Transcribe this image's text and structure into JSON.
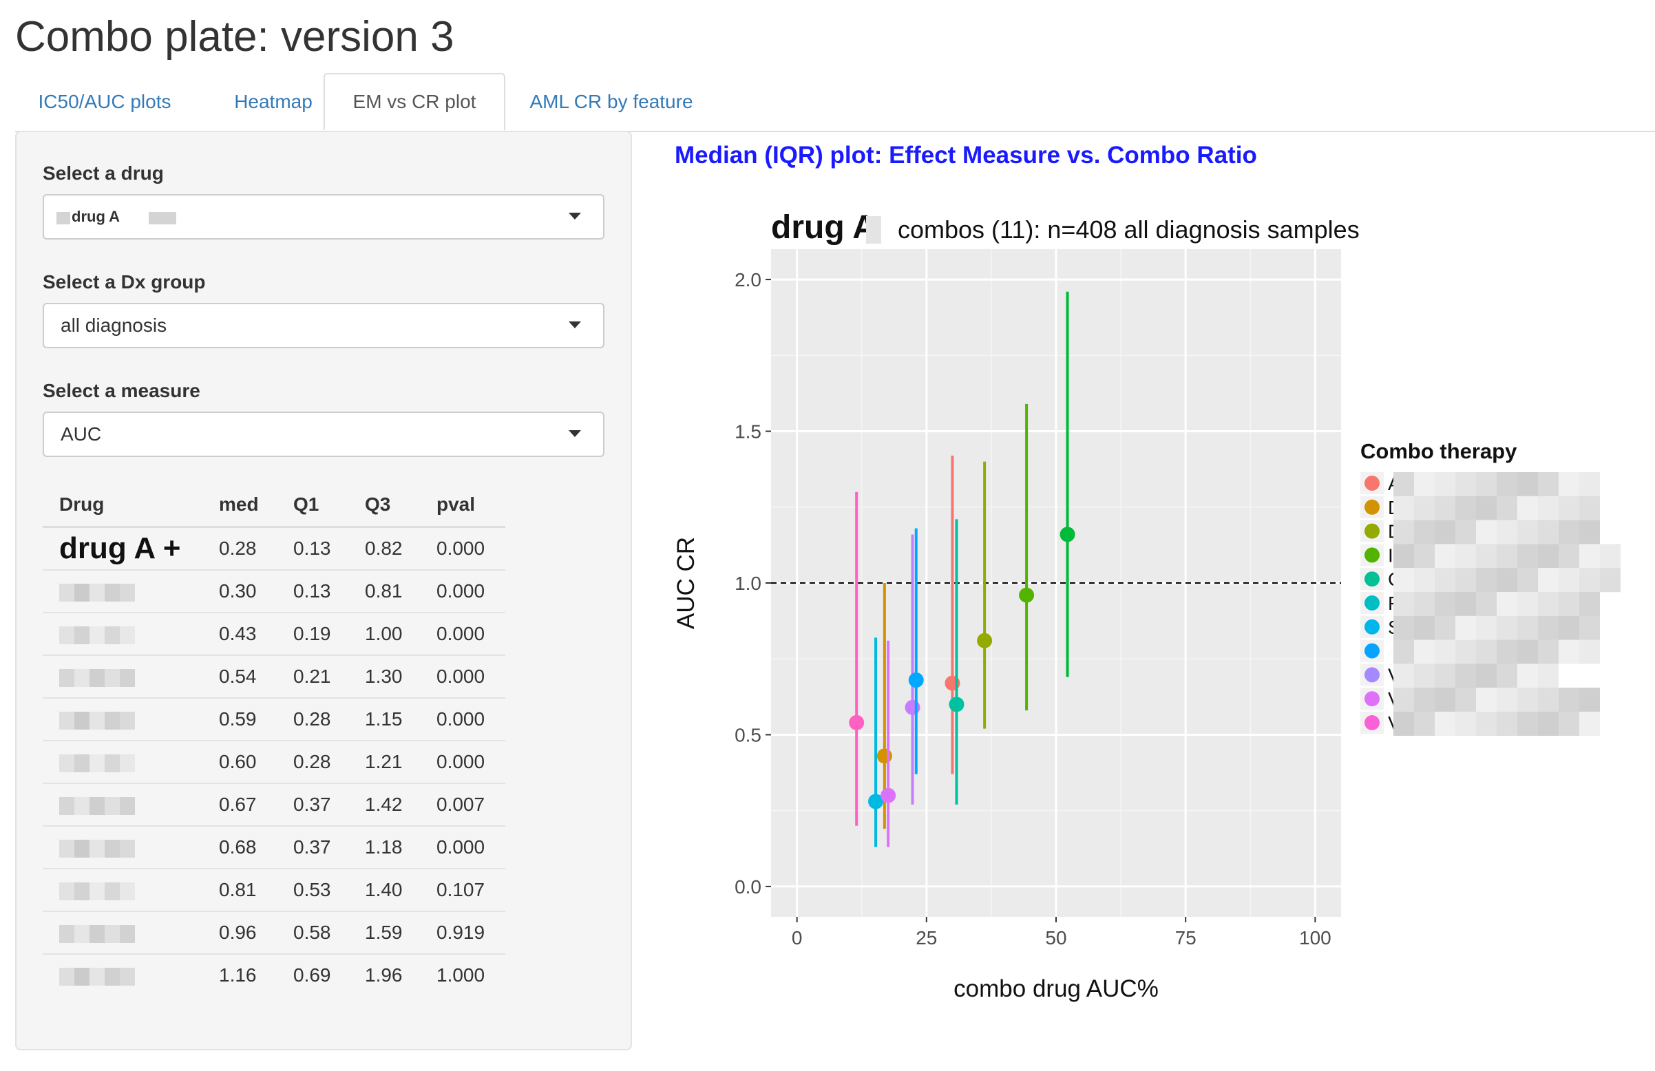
{
  "page": {
    "title": "Combo plate: version 3"
  },
  "tabs": [
    {
      "label": "IC50/AUC plots",
      "active": false
    },
    {
      "label": "Heatmap",
      "active": false
    },
    {
      "label": "EM vs CR plot",
      "active": true
    },
    {
      "label": "AML CR by feature",
      "active": false
    }
  ],
  "controls": {
    "drug": {
      "label": "Select a drug",
      "value": "drug A"
    },
    "dx": {
      "label": "Select a Dx group",
      "value": "all diagnosis"
    },
    "measure": {
      "label": "Select a measure",
      "value": "AUC"
    }
  },
  "table": {
    "headers": [
      "Drug",
      "med",
      "Q1",
      "Q3",
      "pval"
    ],
    "rows": [
      {
        "drug": "drug A +",
        "med": "0.28",
        "q1": "0.13",
        "q3": "0.82",
        "pval": "0.000"
      },
      {
        "drug": "",
        "med": "0.30",
        "q1": "0.13",
        "q3": "0.81",
        "pval": "0.000"
      },
      {
        "drug": "",
        "med": "0.43",
        "q1": "0.19",
        "q3": "1.00",
        "pval": "0.000"
      },
      {
        "drug": "",
        "med": "0.54",
        "q1": "0.21",
        "q3": "1.30",
        "pval": "0.000"
      },
      {
        "drug": "",
        "med": "0.59",
        "q1": "0.28",
        "q3": "1.15",
        "pval": "0.000"
      },
      {
        "drug": "",
        "med": "0.60",
        "q1": "0.28",
        "q3": "1.21",
        "pval": "0.000"
      },
      {
        "drug": "",
        "med": "0.67",
        "q1": "0.37",
        "q3": "1.42",
        "pval": "0.007"
      },
      {
        "drug": "",
        "med": "0.68",
        "q1": "0.37",
        "q3": "1.18",
        "pval": "0.000"
      },
      {
        "drug": "",
        "med": "0.81",
        "q1": "0.53",
        "q3": "1.40",
        "pval": "0.107"
      },
      {
        "drug": "",
        "med": "0.96",
        "q1": "0.58",
        "q3": "1.59",
        "pval": "0.919"
      },
      {
        "drug": "",
        "med": "1.16",
        "q1": "0.69",
        "q3": "1.96",
        "pval": "1.000"
      }
    ]
  },
  "plot_heading": "Median (IQR) plot: Effect Measure vs. Combo Ratio",
  "chart_data": {
    "type": "scatter",
    "title_drug": "drug A",
    "title_rest": "combos (11):  n=408 all diagnosis samples",
    "xlabel": "combo drug  AUC%",
    "ylabel": "AUC CR",
    "xlim": [
      -5,
      105
    ],
    "ylim": [
      -0.1,
      2.1
    ],
    "xticks": [
      0,
      25,
      50,
      75,
      100
    ],
    "yticks": [
      "0.0",
      "0.5",
      "1.0",
      "1.5",
      "2.0"
    ],
    "reference_line": 1.0,
    "legend_title": "Combo therapy",
    "legend_position": "right",
    "legend_visible_initials": [
      "A",
      "D",
      "D",
      "I",
      "C",
      "F",
      "S",
      "",
      "V",
      "V",
      "V"
    ],
    "points": [
      {
        "x": 11.5,
        "med": 0.54,
        "q1": 0.2,
        "q3": 1.3,
        "color": "#FF61C3"
      },
      {
        "x": 15.2,
        "med": 0.28,
        "q1": 0.13,
        "q3": 0.82,
        "color": "#00B9E3"
      },
      {
        "x": 16.9,
        "med": 0.43,
        "q1": 0.19,
        "q3": 1.0,
        "color": "#D39200"
      },
      {
        "x": 17.6,
        "med": 0.3,
        "q1": 0.13,
        "q3": 0.81,
        "color": "#DB72FB"
      },
      {
        "x": 22.3,
        "med": 0.59,
        "q1": 0.27,
        "q3": 1.16,
        "color": "#C77CFF"
      },
      {
        "x": 23.0,
        "med": 0.68,
        "q1": 0.37,
        "q3": 1.18,
        "color": "#00A9FF"
      },
      {
        "x": 30.0,
        "med": 0.67,
        "q1": 0.37,
        "q3": 1.42,
        "color": "#F8766D"
      },
      {
        "x": 30.8,
        "med": 0.6,
        "q1": 0.27,
        "q3": 1.21,
        "color": "#00C19F"
      },
      {
        "x": 36.2,
        "med": 0.81,
        "q1": 0.52,
        "q3": 1.4,
        "color": "#93AA00"
      },
      {
        "x": 44.3,
        "med": 0.96,
        "q1": 0.58,
        "q3": 1.59,
        "color": "#53B400"
      },
      {
        "x": 52.2,
        "med": 1.16,
        "q1": 0.69,
        "q3": 1.96,
        "color": "#00BA38"
      }
    ],
    "legend_colors": [
      "#F8766D",
      "#D39200",
      "#93AA00",
      "#53B400",
      "#00C094",
      "#00BFC4",
      "#00B6EB",
      "#06A4FF",
      "#A58AFF",
      "#DF70F8",
      "#FB61D7"
    ]
  }
}
